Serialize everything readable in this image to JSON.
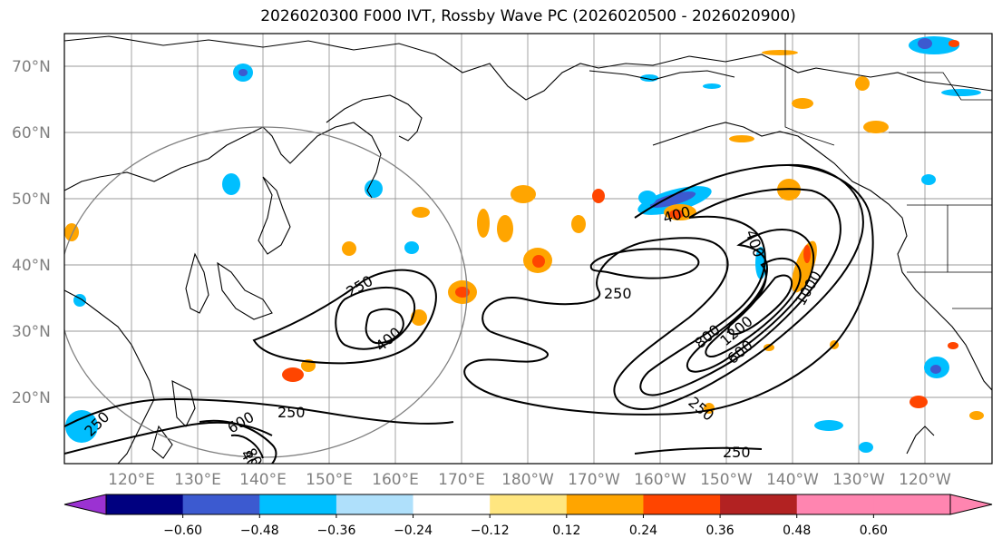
{
  "title": "2026020300 F000 IVT, Rossby Wave PC (2026020500 - 2026020900)",
  "lat_labels": [
    "70°N",
    "60°N",
    "50°N",
    "40°N",
    "30°N",
    "20°N"
  ],
  "lon_labels": [
    "120°E",
    "130°E",
    "140°E",
    "150°E",
    "160°E",
    "170°E",
    "180°W",
    "170°W",
    "160°W",
    "150°W",
    "140°W",
    "130°W",
    "120°W"
  ],
  "contour_labels": [
    "250",
    "250",
    "250",
    "250",
    "250",
    "250",
    "400",
    "400",
    "400",
    "400",
    "600",
    "600",
    "800",
    "800",
    "1000",
    "1200"
  ],
  "colorbar": {
    "ticks": [
      "−0.60",
      "−0.48",
      "−0.36",
      "−0.24",
      "−0.12",
      "0.12",
      "0.24",
      "0.36",
      "0.48",
      "0.60"
    ],
    "colors": [
      "#9b32d2",
      "#000080",
      "#3c5ad0",
      "#00bfff",
      "#afe0fb",
      "#ffffff",
      "#ffe680",
      "#ffa500",
      "#ff4500",
      "#b22222",
      "#ff85b0",
      "#ff85b0"
    ]
  }
}
